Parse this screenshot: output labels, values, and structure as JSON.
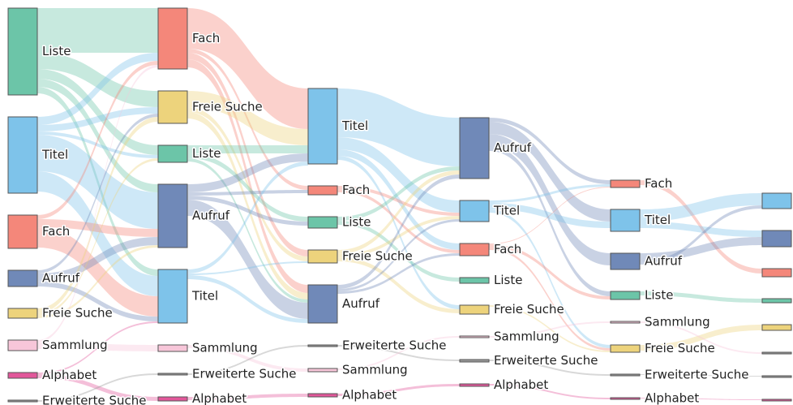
{
  "chart_data": {
    "type": "sankey",
    "columns": [
      {
        "nodes": [
          {
            "label": "Liste",
            "value": 107,
            "color": "#6cc5a8"
          },
          {
            "label": "Titel",
            "value": 94,
            "color": "#7ec3ea"
          },
          {
            "label": "Fach",
            "value": 41,
            "color": "#f4877a"
          },
          {
            "label": "Aufruf",
            "value": 20,
            "color": "#7089b8"
          },
          {
            "label": "Freie Suche",
            "value": 12,
            "color": "#edd37c"
          },
          {
            "label": "Sammlung",
            "value": 13,
            "color": "#f7c6d9"
          },
          {
            "label": "Alphabet",
            "value": 7,
            "color": "#e2579a"
          },
          {
            "label": "Erweiterte Suche",
            "value": 2,
            "color": "#999999"
          }
        ]
      },
      {
        "nodes": [
          {
            "label": "Fach",
            "value": 75,
            "color": "#f4877a"
          },
          {
            "label": "Freie Suche",
            "value": 40,
            "color": "#edd37c"
          },
          {
            "label": "Liste",
            "value": 21,
            "color": "#6cc5a8"
          },
          {
            "label": "Aufruf",
            "value": 78,
            "color": "#7089b8"
          },
          {
            "label": "Titel",
            "value": 66,
            "color": "#7ec3ea"
          },
          {
            "label": "Sammlung",
            "value": 8,
            "color": "#f7c6d9"
          },
          {
            "label": "Erweiterte Suche",
            "value": 2,
            "color": "#999999"
          },
          {
            "label": "Alphabet",
            "value": 5,
            "color": "#e2579a"
          }
        ]
      },
      {
        "nodes": [
          {
            "label": "Titel",
            "value": 93,
            "color": "#7ec3ea"
          },
          {
            "label": "Fach",
            "value": 11,
            "color": "#f4877a"
          },
          {
            "label": "Liste",
            "value": 14,
            "color": "#6cc5a8"
          },
          {
            "label": "Freie Suche",
            "value": 16,
            "color": "#edd37c"
          },
          {
            "label": "Aufruf",
            "value": 47,
            "color": "#7089b8"
          },
          {
            "label": "Erweiterte Suche",
            "value": 2,
            "color": "#999999"
          },
          {
            "label": "Sammlung",
            "value": 4,
            "color": "#f7c6d9"
          },
          {
            "label": "Alphabet",
            "value": 4,
            "color": "#e2579a"
          }
        ]
      },
      {
        "nodes": [
          {
            "label": "Aufruf",
            "value": 75,
            "color": "#7089b8"
          },
          {
            "label": "Titel",
            "value": 26,
            "color": "#7ec3ea"
          },
          {
            "label": "Fach",
            "value": 15,
            "color": "#f4877a"
          },
          {
            "label": "Liste",
            "value": 7,
            "color": "#6cc5a8"
          },
          {
            "label": "Freie Suche",
            "value": 11,
            "color": "#edd37c"
          },
          {
            "label": "Sammlung",
            "value": 2,
            "color": "#f7c6d9"
          },
          {
            "label": "Erweiterte Suche",
            "value": 3,
            "color": "#999999"
          },
          {
            "label": "Alphabet",
            "value": 3,
            "color": "#e2579a"
          }
        ]
      },
      {
        "nodes": [
          {
            "label": "Fach",
            "value": 9,
            "color": "#f4877a"
          },
          {
            "label": "Titel",
            "value": 27,
            "color": "#7ec3ea"
          },
          {
            "label": "Aufruf",
            "value": 20,
            "color": "#7089b8"
          },
          {
            "label": "Liste",
            "value": 10,
            "color": "#6cc5a8"
          },
          {
            "label": "Sammlung",
            "value": 2,
            "color": "#f7c6d9"
          },
          {
            "label": "Freie Suche",
            "value": 9,
            "color": "#edd37c"
          },
          {
            "label": "Erweiterte Suche",
            "value": 2,
            "color": "#999999"
          },
          {
            "label": "Alphabet",
            "value": 2,
            "color": "#e2579a"
          }
        ]
      },
      {
        "nodes": [
          {
            "label": null,
            "value": 19,
            "color": "#7ec3ea"
          },
          {
            "label": null,
            "value": 20,
            "color": "#7089b8"
          },
          {
            "label": null,
            "value": 10,
            "color": "#f4877a"
          },
          {
            "label": null,
            "value": 5,
            "color": "#6cc5a8"
          },
          {
            "label": null,
            "value": 7,
            "color": "#edd37c"
          },
          {
            "label": null,
            "value": 2,
            "color": "#999999"
          },
          {
            "label": null,
            "value": 1,
            "color": "#999999"
          },
          {
            "label": null,
            "value": 1,
            "color": "#e2579a"
          }
        ]
      }
    ],
    "links": [
      {
        "source": [
          0,
          0
        ],
        "target": [
          1,
          0
        ],
        "value": 55
      },
      {
        "source": [
          0,
          0
        ],
        "target": [
          1,
          1
        ],
        "value": 20
      },
      {
        "source": [
          0,
          0
        ],
        "target": [
          1,
          2
        ],
        "value": 12
      },
      {
        "source": [
          0,
          0
        ],
        "target": [
          1,
          3
        ],
        "value": 10
      },
      {
        "source": [
          0,
          0
        ],
        "target": [
          1,
          4
        ],
        "value": 8
      },
      {
        "source": [
          0,
          1
        ],
        "target": [
          1,
          0
        ],
        "value": 10
      },
      {
        "source": [
          0,
          1
        ],
        "target": [
          1,
          1
        ],
        "value": 8
      },
      {
        "source": [
          0,
          1
        ],
        "target": [
          1,
          2
        ],
        "value": 4
      },
      {
        "source": [
          0,
          1
        ],
        "target": [
          1,
          3
        ],
        "value": 45
      },
      {
        "source": [
          0,
          1
        ],
        "target": [
          1,
          4
        ],
        "value": 25
      },
      {
        "source": [
          0,
          2
        ],
        "target": [
          1,
          0
        ],
        "value": 5
      },
      {
        "source": [
          0,
          2
        ],
        "target": [
          1,
          3
        ],
        "value": 10
      },
      {
        "source": [
          0,
          2
        ],
        "target": [
          1,
          4
        ],
        "value": 25
      },
      {
        "source": [
          0,
          3
        ],
        "target": [
          1,
          1
        ],
        "value": 4
      },
      {
        "source": [
          0,
          3
        ],
        "target": [
          1,
          3
        ],
        "value": 10
      },
      {
        "source": [
          0,
          3
        ],
        "target": [
          1,
          4
        ],
        "value": 6
      },
      {
        "source": [
          0,
          4
        ],
        "target": [
          1,
          1
        ],
        "value": 6
      },
      {
        "source": [
          0,
          4
        ],
        "target": [
          1,
          2
        ],
        "value": 3
      },
      {
        "source": [
          0,
          4
        ],
        "target": [
          1,
          3
        ],
        "value": 3
      },
      {
        "source": [
          0,
          5
        ],
        "target": [
          1,
          0
        ],
        "value": 3
      },
      {
        "source": [
          0,
          5
        ],
        "target": [
          1,
          5
        ],
        "value": 8
      },
      {
        "source": [
          0,
          6
        ],
        "target": [
          1,
          4
        ],
        "value": 2
      },
      {
        "source": [
          0,
          6
        ],
        "target": [
          1,
          7
        ],
        "value": 5
      },
      {
        "source": [
          0,
          7
        ],
        "target": [
          1,
          6
        ],
        "value": 2
      },
      {
        "source": [
          1,
          0
        ],
        "target": [
          2,
          0
        ],
        "value": 50
      },
      {
        "source": [
          1,
          0
        ],
        "target": [
          2,
          1
        ],
        "value": 5
      },
      {
        "source": [
          1,
          0
        ],
        "target": [
          2,
          3
        ],
        "value": 8
      },
      {
        "source": [
          1,
          0
        ],
        "target": [
          2,
          4
        ],
        "value": 10
      },
      {
        "source": [
          1,
          1
        ],
        "target": [
          2,
          0
        ],
        "value": 20
      },
      {
        "source": [
          1,
          1
        ],
        "target": [
          2,
          3
        ],
        "value": 6
      },
      {
        "source": [
          1,
          1
        ],
        "target": [
          2,
          4
        ],
        "value": 8
      },
      {
        "source": [
          1,
          2
        ],
        "target": [
          2,
          0
        ],
        "value": 10
      },
      {
        "source": [
          1,
          2
        ],
        "target": [
          2,
          2
        ],
        "value": 6
      },
      {
        "source": [
          1,
          2
        ],
        "target": [
          2,
          4
        ],
        "value": 4
      },
      {
        "source": [
          1,
          3
        ],
        "target": [
          2,
          0
        ],
        "value": 10
      },
      {
        "source": [
          1,
          3
        ],
        "target": [
          2,
          1
        ],
        "value": 4
      },
      {
        "source": [
          1,
          3
        ],
        "target": [
          2,
          2
        ],
        "value": 5
      },
      {
        "source": [
          1,
          3
        ],
        "target": [
          2,
          4
        ],
        "value": 20
      },
      {
        "source": [
          1,
          4
        ],
        "target": [
          2,
          0
        ],
        "value": 5
      },
      {
        "source": [
          1,
          4
        ],
        "target": [
          2,
          3
        ],
        "value": 2
      },
      {
        "source": [
          1,
          4
        ],
        "target": [
          2,
          4
        ],
        "value": 5
      },
      {
        "source": [
          1,
          5
        ],
        "target": [
          2,
          6
        ],
        "value": 4
      },
      {
        "source": [
          1,
          6
        ],
        "target": [
          2,
          5
        ],
        "value": 2
      },
      {
        "source": [
          1,
          7
        ],
        "target": [
          2,
          7
        ],
        "value": 4
      },
      {
        "source": [
          2,
          0
        ],
        "target": [
          3,
          0
        ],
        "value": 60
      },
      {
        "source": [
          2,
          0
        ],
        "target": [
          3,
          1
        ],
        "value": 15
      },
      {
        "source": [
          2,
          0
        ],
        "target": [
          3,
          2
        ],
        "value": 8
      },
      {
        "source": [
          2,
          0
        ],
        "target": [
          3,
          4
        ],
        "value": 5
      },
      {
        "source": [
          2,
          1
        ],
        "target": [
          3,
          1
        ],
        "value": 4
      },
      {
        "source": [
          2,
          1
        ],
        "target": [
          3,
          2
        ],
        "value": 4
      },
      {
        "source": [
          2,
          2
        ],
        "target": [
          3,
          0
        ],
        "value": 5
      },
      {
        "source": [
          2,
          2
        ],
        "target": [
          3,
          3
        ],
        "value": 5
      },
      {
        "source": [
          2,
          3
        ],
        "target": [
          3,
          0
        ],
        "value": 5
      },
      {
        "source": [
          2,
          3
        ],
        "target": [
          3,
          1
        ],
        "value": 4
      },
      {
        "source": [
          2,
          3
        ],
        "target": [
          3,
          4
        ],
        "value": 5
      },
      {
        "source": [
          2,
          4
        ],
        "target": [
          3,
          0
        ],
        "value": 5
      },
      {
        "source": [
          2,
          4
        ],
        "target": [
          3,
          1
        ],
        "value": 3
      },
      {
        "source": [
          2,
          4
        ],
        "target": [
          3,
          2
        ],
        "value": 3
      },
      {
        "source": [
          2,
          5
        ],
        "target": [
          3,
          6
        ],
        "value": 2
      },
      {
        "source": [
          2,
          6
        ],
        "target": [
          3,
          5
        ],
        "value": 2
      },
      {
        "source": [
          2,
          7
        ],
        "target": [
          3,
          7
        ],
        "value": 3
      },
      {
        "source": [
          3,
          0
        ],
        "target": [
          4,
          0
        ],
        "value": 5
      },
      {
        "source": [
          3,
          0
        ],
        "target": [
          4,
          1
        ],
        "value": 15
      },
      {
        "source": [
          3,
          0
        ],
        "target": [
          4,
          2
        ],
        "value": 15
      },
      {
        "source": [
          3,
          0
        ],
        "target": [
          4,
          3
        ],
        "value": 6
      },
      {
        "source": [
          3,
          1
        ],
        "target": [
          4,
          0
        ],
        "value": 3
      },
      {
        "source": [
          3,
          1
        ],
        "target": [
          4,
          1
        ],
        "value": 8
      },
      {
        "source": [
          3,
          1
        ],
        "target": [
          4,
          5
        ],
        "value": 4
      },
      {
        "source": [
          3,
          2
        ],
        "target": [
          4,
          0
        ],
        "value": 1
      },
      {
        "source": [
          3,
          2
        ],
        "target": [
          4,
          3
        ],
        "value": 4
      },
      {
        "source": [
          3,
          2
        ],
        "target": [
          4,
          5
        ],
        "value": 3
      },
      {
        "source": [
          3,
          4
        ],
        "target": [
          4,
          5
        ],
        "value": 2
      },
      {
        "source": [
          3,
          5
        ],
        "target": [
          4,
          4
        ],
        "value": 2
      },
      {
        "source": [
          3,
          6
        ],
        "target": [
          4,
          6
        ],
        "value": 2
      },
      {
        "source": [
          3,
          7
        ],
        "target": [
          4,
          7
        ],
        "value": 2
      },
      {
        "source": [
          4,
          0
        ],
        "target": [
          5,
          2
        ],
        "value": 6
      },
      {
        "source": [
          4,
          1
        ],
        "target": [
          5,
          0
        ],
        "value": 15
      },
      {
        "source": [
          4,
          1
        ],
        "target": [
          5,
          1
        ],
        "value": 8
      },
      {
        "source": [
          4,
          2
        ],
        "target": [
          5,
          1
        ],
        "value": 10
      },
      {
        "source": [
          4,
          2
        ],
        "target": [
          5,
          0
        ],
        "value": 4
      },
      {
        "source": [
          4,
          3
        ],
        "target": [
          5,
          3
        ],
        "value": 5
      },
      {
        "source": [
          4,
          5
        ],
        "target": [
          5,
          4
        ],
        "value": 7
      },
      {
        "source": [
          4,
          4
        ],
        "target": [
          5,
          5
        ],
        "value": 2
      },
      {
        "source": [
          4,
          6
        ],
        "target": [
          5,
          6
        ],
        "value": 1
      },
      {
        "source": [
          4,
          7
        ],
        "target": [
          5,
          7
        ],
        "value": 1
      }
    ]
  }
}
